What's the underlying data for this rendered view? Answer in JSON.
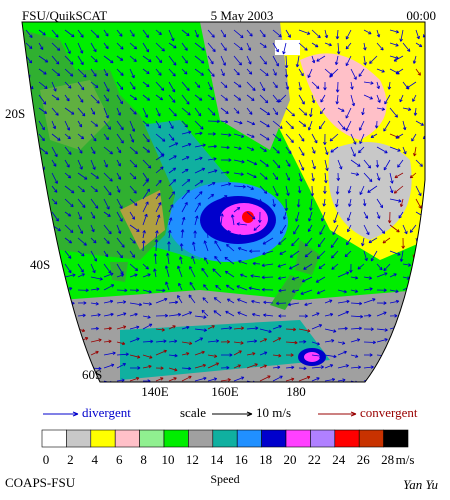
{
  "header": {
    "product": "FSU/QuikSCAT",
    "date": "5 May 2003",
    "time": "00:00"
  },
  "map": {
    "lat_labels": [
      "20S",
      "40S",
      "60S"
    ],
    "lon_labels": [
      "140E",
      "160E",
      "180"
    ]
  },
  "legend": {
    "divergent": "divergent",
    "scale": "scale",
    "scale_value": "10 m/s",
    "convergent": "convergent"
  },
  "colorbar": {
    "colors": [
      "#ffffff",
      "#c8c8c8",
      "#ffff00",
      "#ffc0c8",
      "#90f090",
      "#00ee00",
      "#a0a0a0",
      "#10b0a0",
      "#2090ff",
      "#0000cc",
      "#ff40ff",
      "#b080ff",
      "#ff0000",
      "#c83200",
      "#000000"
    ],
    "labels": [
      0,
      2,
      4,
      6,
      8,
      10,
      12,
      14,
      16,
      18,
      20,
      22,
      24,
      26,
      28
    ],
    "unit": "m/s",
    "title": "Speed"
  },
  "footer": {
    "institution": "COAPS-FSU",
    "author": "Yan Yu"
  }
}
